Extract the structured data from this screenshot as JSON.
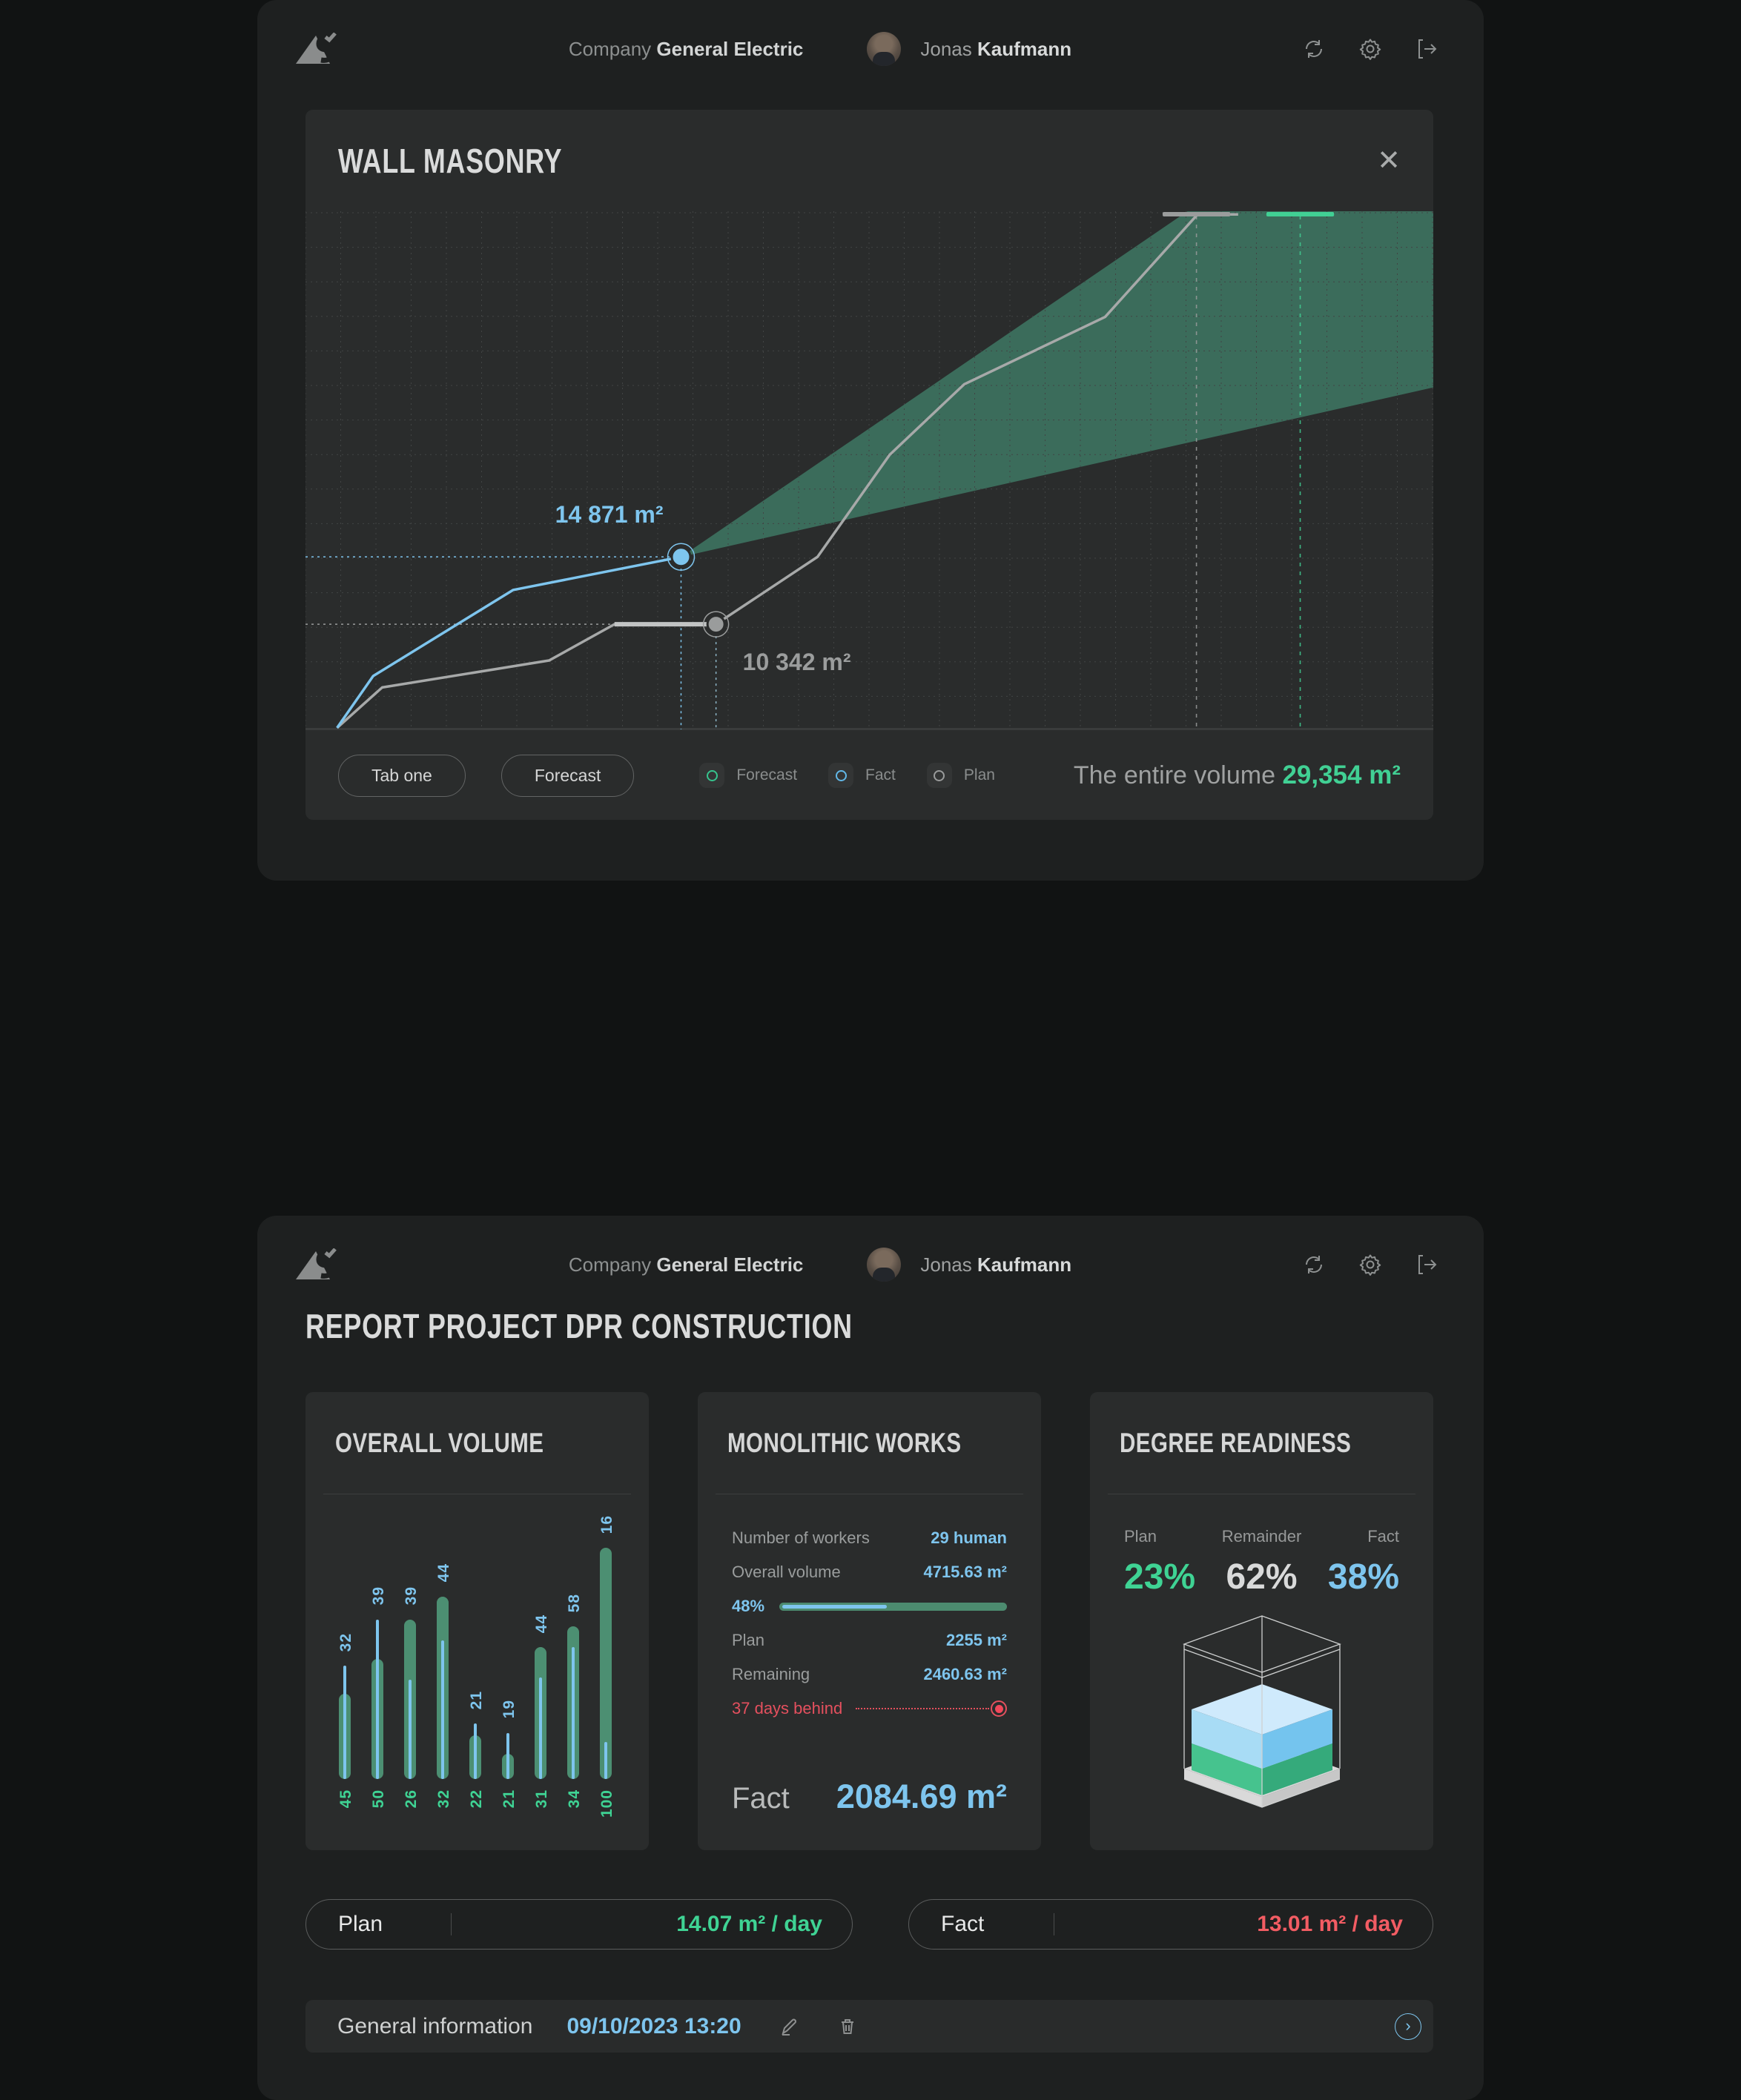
{
  "theme": {
    "page_bg": "#111313",
    "panel_bg": "#1e2020",
    "card_bg": "#2a2c2c",
    "grid": "#414444",
    "blue": "#7ec5ee",
    "teal": "#41d094",
    "green_muted": "#4c8f72",
    "cone_green": "#3d7260",
    "gray_line": "#a7a9a9",
    "red": "#f25c63",
    "legend_green": "#36c48e",
    "legend_blue": "#62b8e8",
    "legend_gray": "#9a9c9c"
  },
  "header": {
    "company_label": "Company",
    "company_name": "General Electric",
    "user_first_name": "Jonas",
    "user_last_name": "Kaufmann"
  },
  "wall_masonry": {
    "title": "WALL MASONRY",
    "close_glyph": "✕",
    "tabs": [
      {
        "label": "Tab one"
      },
      {
        "label": "Forecast"
      }
    ],
    "legend": [
      {
        "label": "Forecast",
        "color_key": "legend_green"
      },
      {
        "label": "Fact",
        "color_key": "legend_blue"
      },
      {
        "label": "Plan",
        "color_key": "legend_gray"
      }
    ],
    "total_label": "The entire volume",
    "total_value": "29,354 m²",
    "chart_data": {
      "type": "line",
      "unit": "m²",
      "grid": true,
      "annotations": [
        {
          "series": "Fact",
          "label": "14 871 m²",
          "value": 14871
        },
        {
          "series": "Plan",
          "label": "10 342 m²",
          "value": 10342
        }
      ],
      "total_volume": 29354,
      "series": [
        {
          "name": "Fact",
          "color_key": "blue",
          "points_pct": [
            [
              2.8,
              99.7
            ],
            [
              6.0,
              89.7
            ],
            [
              18.4,
              73.1
            ],
            [
              33.3,
              66.7
            ]
          ],
          "marker_pct": [
            33.3,
            66.7
          ]
        },
        {
          "name": "Plan",
          "color_key": "gray_line",
          "points_pct": [
            [
              2.8,
              99.7
            ],
            [
              6.8,
              91.9
            ],
            [
              21.6,
              86.7
            ],
            [
              27.4,
              79.7
            ],
            [
              36.4,
              79.7
            ],
            [
              45.4,
              66.7
            ],
            [
              51.8,
              47.0
            ],
            [
              58.4,
              33.4
            ],
            [
              70.9,
              20.4
            ],
            [
              79.1,
              0.6
            ],
            [
              82.7,
              0.6
            ]
          ],
          "plateau_pct": [
            [
              27.4,
              79.7
            ],
            [
              36.4,
              79.7
            ]
          ],
          "marker_pct": [
            36.4,
            79.7
          ]
        },
        {
          "name": "Forecast",
          "type": "area",
          "color_key": "cone_green",
          "polygon_pct": [
            [
              33.3,
              66.7
            ],
            [
              78.2,
              0
            ],
            [
              100,
              0
            ],
            [
              100,
              34
            ]
          ]
        }
      ],
      "guides": {
        "h_blue": {
          "y_pct": 66.7,
          "x_to_pct": 33.3
        },
        "h_gray": {
          "y_pct": 79.7,
          "x_to_pct": 27.4
        },
        "v_blue_x_pct": 33.3,
        "v_gray_x_pct": 36.4
      },
      "top_ticks": [
        {
          "color_key": "legend_gray",
          "x_from_pct": 76.0,
          "x_to_pct": 82.0
        },
        {
          "color_key": "teal",
          "x_from_pct": 85.2,
          "x_to_pct": 91.2
        }
      ],
      "dashed_vlines": [
        {
          "color_key": "legend_gray",
          "x_pct": 79.0
        },
        {
          "color_key": "teal",
          "x_pct": 88.2
        }
      ]
    }
  },
  "report": {
    "title": "REPORT PROJECT DPR CONSTRUCTION",
    "overall_volume": {
      "title": "OVERALL VOLUME",
      "chart_data": {
        "type": "bar",
        "categories": [
          "45",
          "50",
          "26",
          "32",
          "22",
          "21",
          "31",
          "34",
          "100"
        ],
        "series": [
          {
            "name": "value-top-blue",
            "values": [
              32,
              39,
              39,
              44,
              21,
              19,
              44,
              58,
              16
            ]
          },
          {
            "name": "value-bottom-green",
            "values": [
              45,
              50,
              26,
              32,
              22,
              21,
              31,
              34,
              100
            ]
          }
        ],
        "render": {
          "green_pct": [
            37,
            52,
            69,
            79,
            19,
            11,
            57,
            66,
            100
          ],
          "blue_pct": [
            49,
            69,
            43,
            60,
            24,
            20,
            44,
            57,
            16
          ]
        }
      }
    },
    "monolithic": {
      "title": "MONOLITHIC WORKS",
      "rows_top": [
        {
          "label": "Number of workers",
          "value": "29 human"
        },
        {
          "label": "Overall volume",
          "value": "4715.63 m²"
        }
      ],
      "progress": {
        "label": "48%",
        "fill_pct": 46
      },
      "rows_bottom": [
        {
          "label": "Plan",
          "value": "2255 m²"
        },
        {
          "label": "Remaining",
          "value": "2460.63 m²"
        }
      ],
      "behind_label": "37 days behind",
      "fact_label": "Fact",
      "fact_value": "2084.69 m²"
    },
    "readiness": {
      "title": "DEGREE READINESS",
      "stats": [
        {
          "label": "Plan",
          "value": "23%",
          "color": "#3fd394"
        },
        {
          "label": "Remainder",
          "value": "62%",
          "color": "#d9dada"
        },
        {
          "label": "Fact",
          "value": "38%",
          "color": "#7ec5ee"
        }
      ],
      "cube": {
        "wire": "#cfd1d1",
        "base_left": "#d9d9d9",
        "base_right": "#c7c7c7",
        "green_left": "#46c38e",
        "green_right": "#35aa7b",
        "blue_top": "#cfeafc",
        "blue_left": "#a8dcf5",
        "blue_right": "#74c4ee"
      }
    },
    "plan_pill": {
      "label": "Plan",
      "value": "14.07 m² / day"
    },
    "fact_pill": {
      "label": "Fact",
      "value": "13.01 m² / day"
    },
    "general": {
      "label": "General information",
      "date": "09/10/2023 13:20",
      "chevron": "›"
    }
  }
}
